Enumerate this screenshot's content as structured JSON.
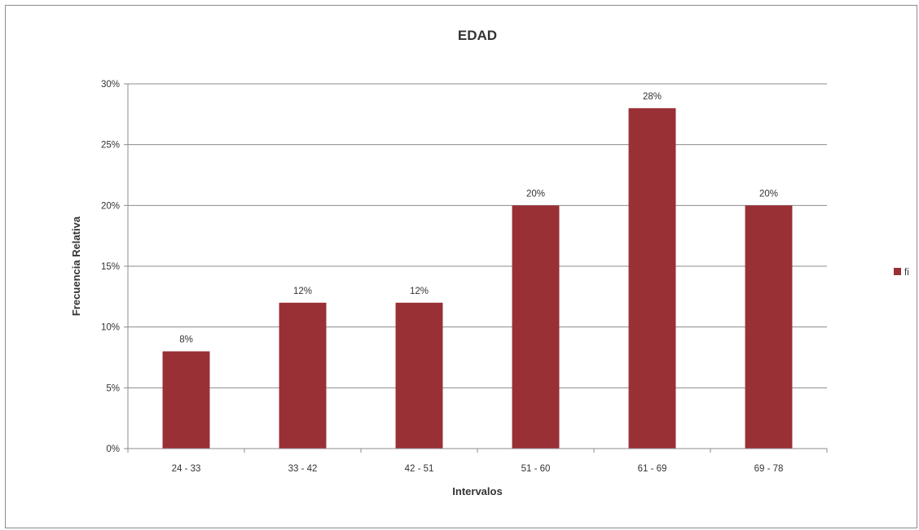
{
  "chart_data": {
    "type": "bar",
    "title": "EDAD",
    "xlabel": "Intervalos",
    "ylabel": "Frecuencia Relativa",
    "categories": [
      "24 - 33",
      "33 - 42",
      "42 - 51",
      "51 - 60",
      "61 - 69",
      "69 - 78"
    ],
    "series": [
      {
        "name": "fi",
        "values": [
          0.08,
          0.12,
          0.12,
          0.2,
          0.28,
          0.2
        ],
        "color": "#993036"
      }
    ],
    "data_labels": [
      "8%",
      "12%",
      "12%",
      "20%",
      "28%",
      "20%"
    ],
    "ylim": [
      0,
      0.3
    ],
    "yticks": [
      "0%",
      "5%",
      "10%",
      "15%",
      "20%",
      "25%",
      "30%"
    ],
    "grid": true,
    "legend_position": "right"
  }
}
